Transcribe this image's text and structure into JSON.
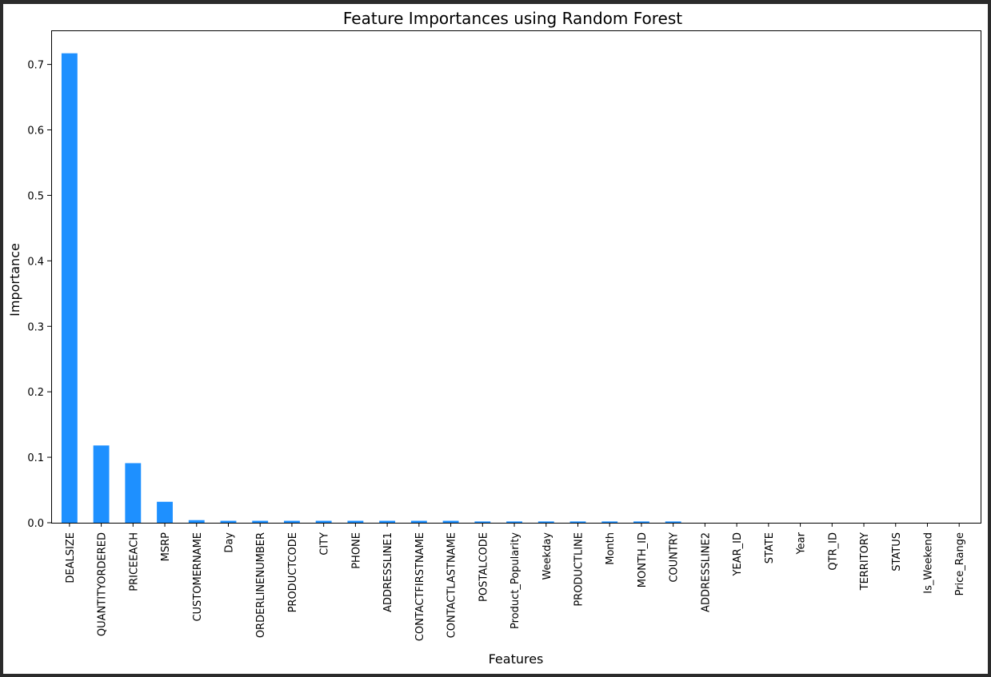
{
  "chart_data": {
    "type": "bar",
    "title": "Feature Importances using Random Forest",
    "xlabel": "Features",
    "ylabel": "Importance",
    "ylim": [
      0,
      0.752
    ],
    "yticks": [
      "0.0",
      "0.1",
      "0.2",
      "0.3",
      "0.4",
      "0.5",
      "0.6",
      "0.7"
    ],
    "bar_color": "#1e90ff",
    "grid": false,
    "categories": [
      "DEALSIZE",
      "QUANTITYORDERED",
      "PRICEEACH",
      "MSRP",
      "CUSTOMERNAME",
      "Day",
      "ORDERLINENUMBER",
      "PRODUCTCODE",
      "CITY",
      "PHONE",
      "ADDRESSLINE1",
      "CONTACTFIRSTNAME",
      "CONTACTLASTNAME",
      "POSTALCODE",
      "Product_Popularity",
      "Weekday",
      "PRODUCTLINE",
      "Month",
      "MONTH_ID",
      "COUNTRY",
      "ADDRESSLINE2",
      "YEAR_ID",
      "STATE",
      "Year",
      "QTR_ID",
      "TERRITORY",
      "STATUS",
      "Is_Weekend",
      "Price_Range"
    ],
    "values": [
      0.717,
      0.118,
      0.091,
      0.032,
      0.004,
      0.003,
      0.003,
      0.003,
      0.003,
      0.003,
      0.003,
      0.003,
      0.003,
      0.002,
      0.002,
      0.002,
      0.002,
      0.002,
      0.002,
      0.002,
      0.0,
      0.0,
      0.0,
      0.0,
      0.0,
      0.0,
      0.0,
      0.0,
      0.0
    ]
  }
}
